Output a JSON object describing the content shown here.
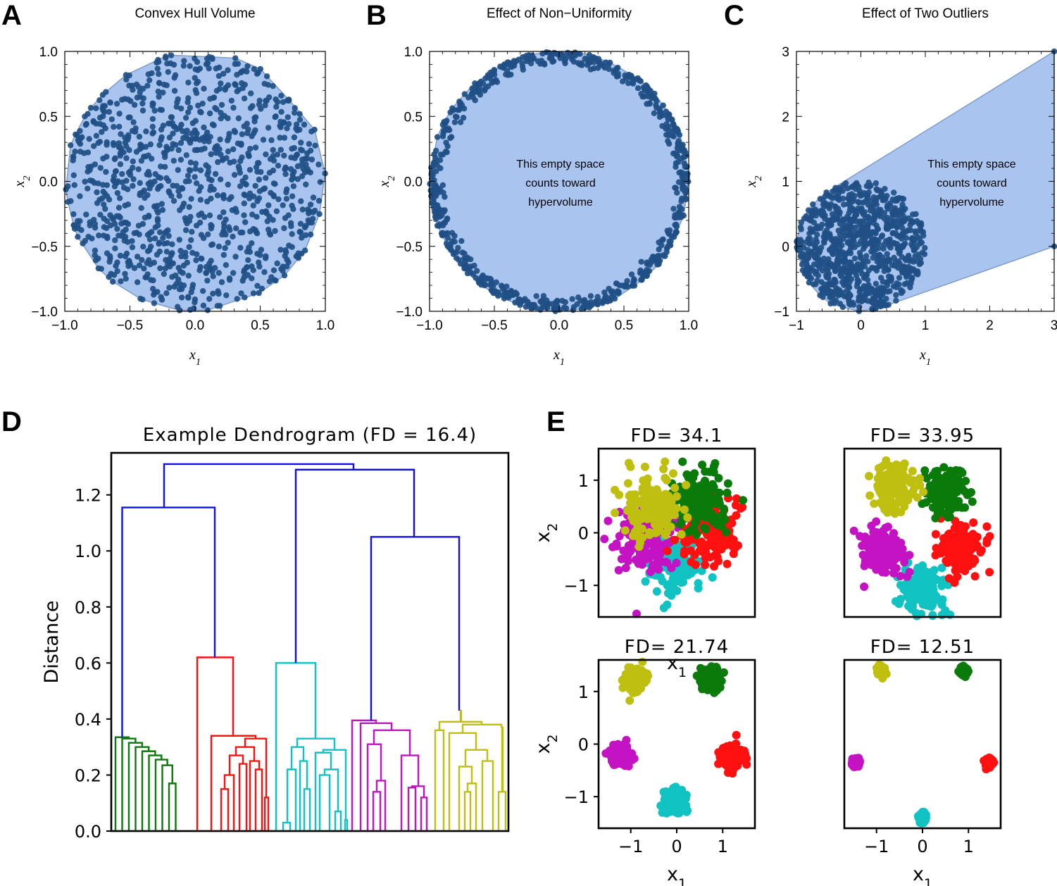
{
  "panel_letters": {
    "a": "A",
    "b": "B",
    "c": "C",
    "d": "D",
    "e": "E"
  },
  "colors": {
    "hull_fill": "#a9c4ef",
    "hull_edge": "#7f9cc7",
    "points": "#1f4f86",
    "green": "#0a7a0a",
    "red": "#ff1010",
    "cyan": "#11c2c2",
    "magenta": "#c313c3",
    "yellow": "#bfbf10",
    "blue": "#1010e0"
  },
  "chart_data": [
    {
      "id": "A",
      "type": "scatter",
      "title": "Convex Hull Volume",
      "xlabel": "x",
      "xlabel_sub": "1",
      "ylabel": "x",
      "ylabel_sub": "2",
      "xlim": [
        -1.0,
        1.0
      ],
      "ylim": [
        -1.0,
        1.0
      ],
      "xticks": [
        "−1.0",
        "−0.5",
        "0.0",
        "0.5",
        "1.0"
      ],
      "xtick_values": [
        -1.0,
        -0.5,
        0.0,
        0.5,
        1.0
      ],
      "yticks": [
        "−1.0",
        "−0.5",
        "0.0",
        "0.5",
        "1.0"
      ],
      "ytick_values": [
        -1.0,
        -0.5,
        0.0,
        0.5,
        1.0
      ],
      "distribution": "uniform disk, radius 1, ~1000 points",
      "hull": "convex hull of points"
    },
    {
      "id": "B",
      "type": "scatter",
      "title": "Effect of Non−Uniformity",
      "xlabel": "x",
      "xlabel_sub": "1",
      "ylabel": "x",
      "ylabel_sub": "2",
      "xlim": [
        -1.0,
        1.0
      ],
      "ylim": [
        -1.0,
        1.0
      ],
      "xticks": [
        "−1.0",
        "−0.5",
        "0.0",
        "0.5",
        "1.0"
      ],
      "xtick_values": [
        -1.0,
        -0.5,
        0.0,
        0.5,
        1.0
      ],
      "yticks": [
        "−1.0",
        "−0.5",
        "0.0",
        "0.5",
        "1.0"
      ],
      "ytick_values": [
        -1.0,
        -0.5,
        0.0,
        0.5,
        1.0
      ],
      "distribution": "ring, radius 0.88 to 1.0",
      "annotation": [
        "This empty space",
        "counts toward",
        "hypervolume"
      ]
    },
    {
      "id": "C",
      "type": "scatter",
      "title": "Effect of Two Outliers",
      "xlabel": "x",
      "xlabel_sub": "1",
      "ylabel": "x",
      "ylabel_sub": "2",
      "xlim": [
        -1.0,
        3.0
      ],
      "ylim": [
        -1.0,
        3.0
      ],
      "xticks": [
        "−1",
        "0",
        "1",
        "2",
        "3"
      ],
      "xtick_values": [
        -1,
        0,
        1,
        2,
        3
      ],
      "yticks": [
        "−1",
        "0",
        "1",
        "2",
        "3"
      ],
      "ytick_values": [
        -1,
        0,
        1,
        2,
        3
      ],
      "distribution": "uniform disk, radius 1, center (0,0)",
      "outliers": [
        [
          3,
          3
        ],
        [
          3,
          0
        ]
      ],
      "annotation": [
        "This empty space",
        "counts toward",
        "hypervolume"
      ]
    },
    {
      "id": "D",
      "type": "dendrogram",
      "title": "Example Dendrogram (FD = 16.4)",
      "ylabel": "Distance",
      "ylim": [
        0.0,
        1.35
      ],
      "yticks": [
        "0.0",
        "0.2",
        "0.4",
        "0.6",
        "0.8",
        "1.0",
        "1.2"
      ],
      "ytick_values": [
        0.0,
        0.2,
        0.4,
        0.6,
        0.8,
        1.0,
        1.2
      ],
      "clusters": [
        {
          "color": "green",
          "root": 0.335
        },
        {
          "color": "red",
          "root": 0.62
        },
        {
          "color": "cyan",
          "root": 0.6
        },
        {
          "color": "magenta",
          "root": 0.395
        },
        {
          "color": "yellow",
          "root": 0.43
        }
      ],
      "links": [
        {
          "left": "green",
          "right": "red",
          "height": 1.155
        },
        {
          "left": "magenta",
          "right": "yellow",
          "height": 1.05
        },
        {
          "left": "cyan",
          "right": "magenta+yellow",
          "height": 1.29
        },
        {
          "left": "green+red",
          "right": "cyan+magenta+yellow",
          "height": 1.31
        }
      ]
    },
    {
      "id": "E1",
      "type": "scatter",
      "title": "FD= 34.1",
      "xlabel": "x",
      "xlabel_sub": "1",
      "ylabel": "x",
      "ylabel_sub": "2",
      "xlim": [
        -1.7,
        1.7
      ],
      "ylim": [
        -1.6,
        1.6
      ],
      "yticks": [
        "−1",
        "0",
        "1"
      ],
      "ytick_values": [
        -1,
        0,
        1
      ],
      "spread": 0.3,
      "centers": {
        "yellow": [
          -0.55,
          0.5
        ],
        "green": [
          0.5,
          0.6
        ],
        "red": [
          0.7,
          0.0
        ],
        "magenta": [
          -0.7,
          -0.1
        ],
        "cyan": [
          -0.1,
          -0.6
        ]
      }
    },
    {
      "id": "E2",
      "type": "scatter",
      "title": "FD= 33.95",
      "xlim": [
        -1.7,
        1.7
      ],
      "ylim": [
        -1.6,
        1.6
      ],
      "spread": 0.22,
      "centers": {
        "yellow": [
          -0.6,
          0.9
        ],
        "green": [
          0.55,
          0.75
        ],
        "red": [
          0.85,
          -0.35
        ],
        "magenta": [
          -0.85,
          -0.4
        ],
        "cyan": [
          0.0,
          -1.1
        ]
      }
    },
    {
      "id": "E3",
      "type": "scatter",
      "title": "FD= 21.74",
      "xlabel": "x",
      "xlabel_sub": "1",
      "ylabel": "x",
      "ylabel_sub": "2",
      "xlim": [
        -1.7,
        1.7
      ],
      "ylim": [
        -1.6,
        1.6
      ],
      "xticks": [
        "−1",
        "0",
        "1"
      ],
      "xtick_values": [
        -1,
        0,
        1
      ],
      "yticks": [
        "−1",
        "0",
        "1"
      ],
      "ytick_values": [
        -1,
        0,
        1
      ],
      "spread": 0.11,
      "centers": {
        "yellow": [
          -0.9,
          1.2
        ],
        "green": [
          0.75,
          1.25
        ],
        "red": [
          1.2,
          -0.25
        ],
        "magenta": [
          -1.25,
          -0.2
        ],
        "cyan": [
          -0.05,
          -1.1
        ]
      }
    },
    {
      "id": "E4",
      "type": "scatter",
      "title": "FD= 12.51",
      "xlabel": "x",
      "xlabel_sub": "1",
      "xlim": [
        -1.7,
        1.7
      ],
      "ylim": [
        -1.6,
        1.6
      ],
      "xticks": [
        "−1",
        "0",
        "1"
      ],
      "xtick_values": [
        -1,
        0,
        1
      ],
      "spread": 0.035,
      "centers": {
        "yellow": [
          -0.9,
          1.4
        ],
        "green": [
          0.9,
          1.4
        ],
        "red": [
          1.45,
          -0.35
        ],
        "magenta": [
          -1.45,
          -0.35
        ],
        "cyan": [
          0.0,
          -1.4
        ]
      }
    }
  ]
}
